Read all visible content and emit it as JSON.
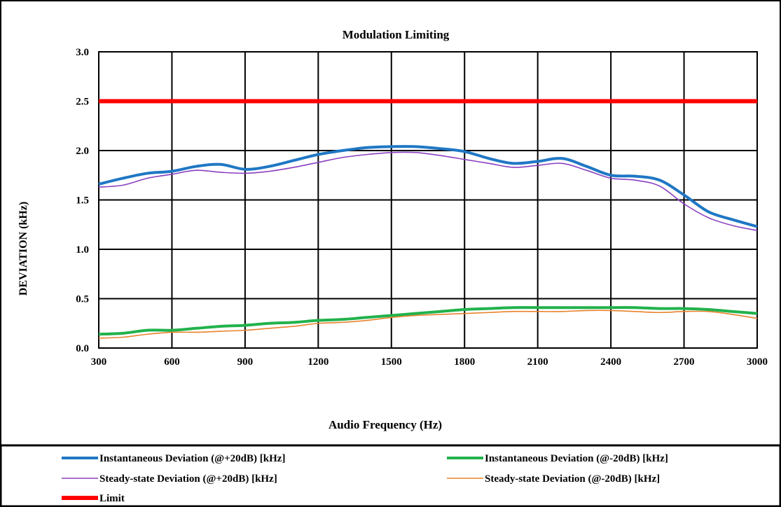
{
  "chart_data": {
    "type": "line",
    "title": "Modulation Limiting",
    "xlabel": "Audio Frequency (Hz)",
    "ylabel": "DEVIATION (kHz)",
    "xlim": [
      300,
      3000
    ],
    "ylim": [
      0,
      3.0
    ],
    "x_ticks": [
      "300",
      "600",
      "900",
      "1200",
      "1500",
      "1800",
      "2100",
      "2400",
      "2700",
      "3000"
    ],
    "y_ticks": [
      "0.0",
      "0.5",
      "1.0",
      "1.5",
      "2.0",
      "2.5",
      "3.0"
    ],
    "grid": true,
    "legend_position": "bottom",
    "x": [
      300,
      400,
      500,
      600,
      700,
      800,
      900,
      1000,
      1100,
      1200,
      1300,
      1400,
      1500,
      1600,
      1700,
      1800,
      1900,
      2000,
      2100,
      2200,
      2300,
      2400,
      2500,
      2600,
      2700,
      2800,
      2900,
      3000
    ],
    "series": [
      {
        "name": "Instantaneous Deviation (@+20dB) [kHz]",
        "color": "#1f77c4",
        "width": 4,
        "values": [
          1.66,
          1.72,
          1.77,
          1.79,
          1.84,
          1.86,
          1.81,
          1.84,
          1.9,
          1.96,
          2.0,
          2.03,
          2.04,
          2.04,
          2.02,
          1.99,
          1.92,
          1.87,
          1.89,
          1.92,
          1.84,
          1.75,
          1.74,
          1.7,
          1.55,
          1.38,
          1.3,
          1.23
        ]
      },
      {
        "name": "Instantaneous Deviation (@-20dB) [kHz]",
        "color": "#22b24c",
        "width": 4,
        "values": [
          0.14,
          0.15,
          0.18,
          0.18,
          0.2,
          0.22,
          0.23,
          0.25,
          0.26,
          0.28,
          0.29,
          0.31,
          0.33,
          0.35,
          0.37,
          0.39,
          0.4,
          0.41,
          0.41,
          0.41,
          0.41,
          0.41,
          0.41,
          0.4,
          0.4,
          0.39,
          0.37,
          0.35
        ]
      },
      {
        "name": "Steady-state Deviation (@+20dB) [kHz]",
        "color": "#8a3fbf",
        "width": 1.6,
        "values": [
          1.63,
          1.65,
          1.72,
          1.76,
          1.8,
          1.78,
          1.77,
          1.79,
          1.83,
          1.88,
          1.93,
          1.96,
          1.98,
          1.98,
          1.95,
          1.91,
          1.87,
          1.83,
          1.85,
          1.87,
          1.8,
          1.72,
          1.7,
          1.64,
          1.46,
          1.32,
          1.24,
          1.19
        ]
      },
      {
        "name": "Steady-state Deviation (@-20dB) [kHz]",
        "color": "#e8822c",
        "width": 1.6,
        "values": [
          0.1,
          0.11,
          0.14,
          0.16,
          0.16,
          0.17,
          0.18,
          0.2,
          0.22,
          0.25,
          0.26,
          0.28,
          0.31,
          0.33,
          0.34,
          0.35,
          0.36,
          0.37,
          0.37,
          0.37,
          0.38,
          0.38,
          0.37,
          0.36,
          0.37,
          0.37,
          0.34,
          0.3
        ]
      },
      {
        "name": "Limit",
        "color": "#ff0000",
        "width": 6,
        "values": [
          2.5,
          2.5,
          2.5,
          2.5,
          2.5,
          2.5,
          2.5,
          2.5,
          2.5,
          2.5,
          2.5,
          2.5,
          2.5,
          2.5,
          2.5,
          2.5,
          2.5,
          2.5,
          2.5,
          2.5,
          2.5,
          2.5,
          2.5,
          2.5,
          2.5,
          2.5,
          2.5,
          2.5
        ]
      }
    ]
  }
}
